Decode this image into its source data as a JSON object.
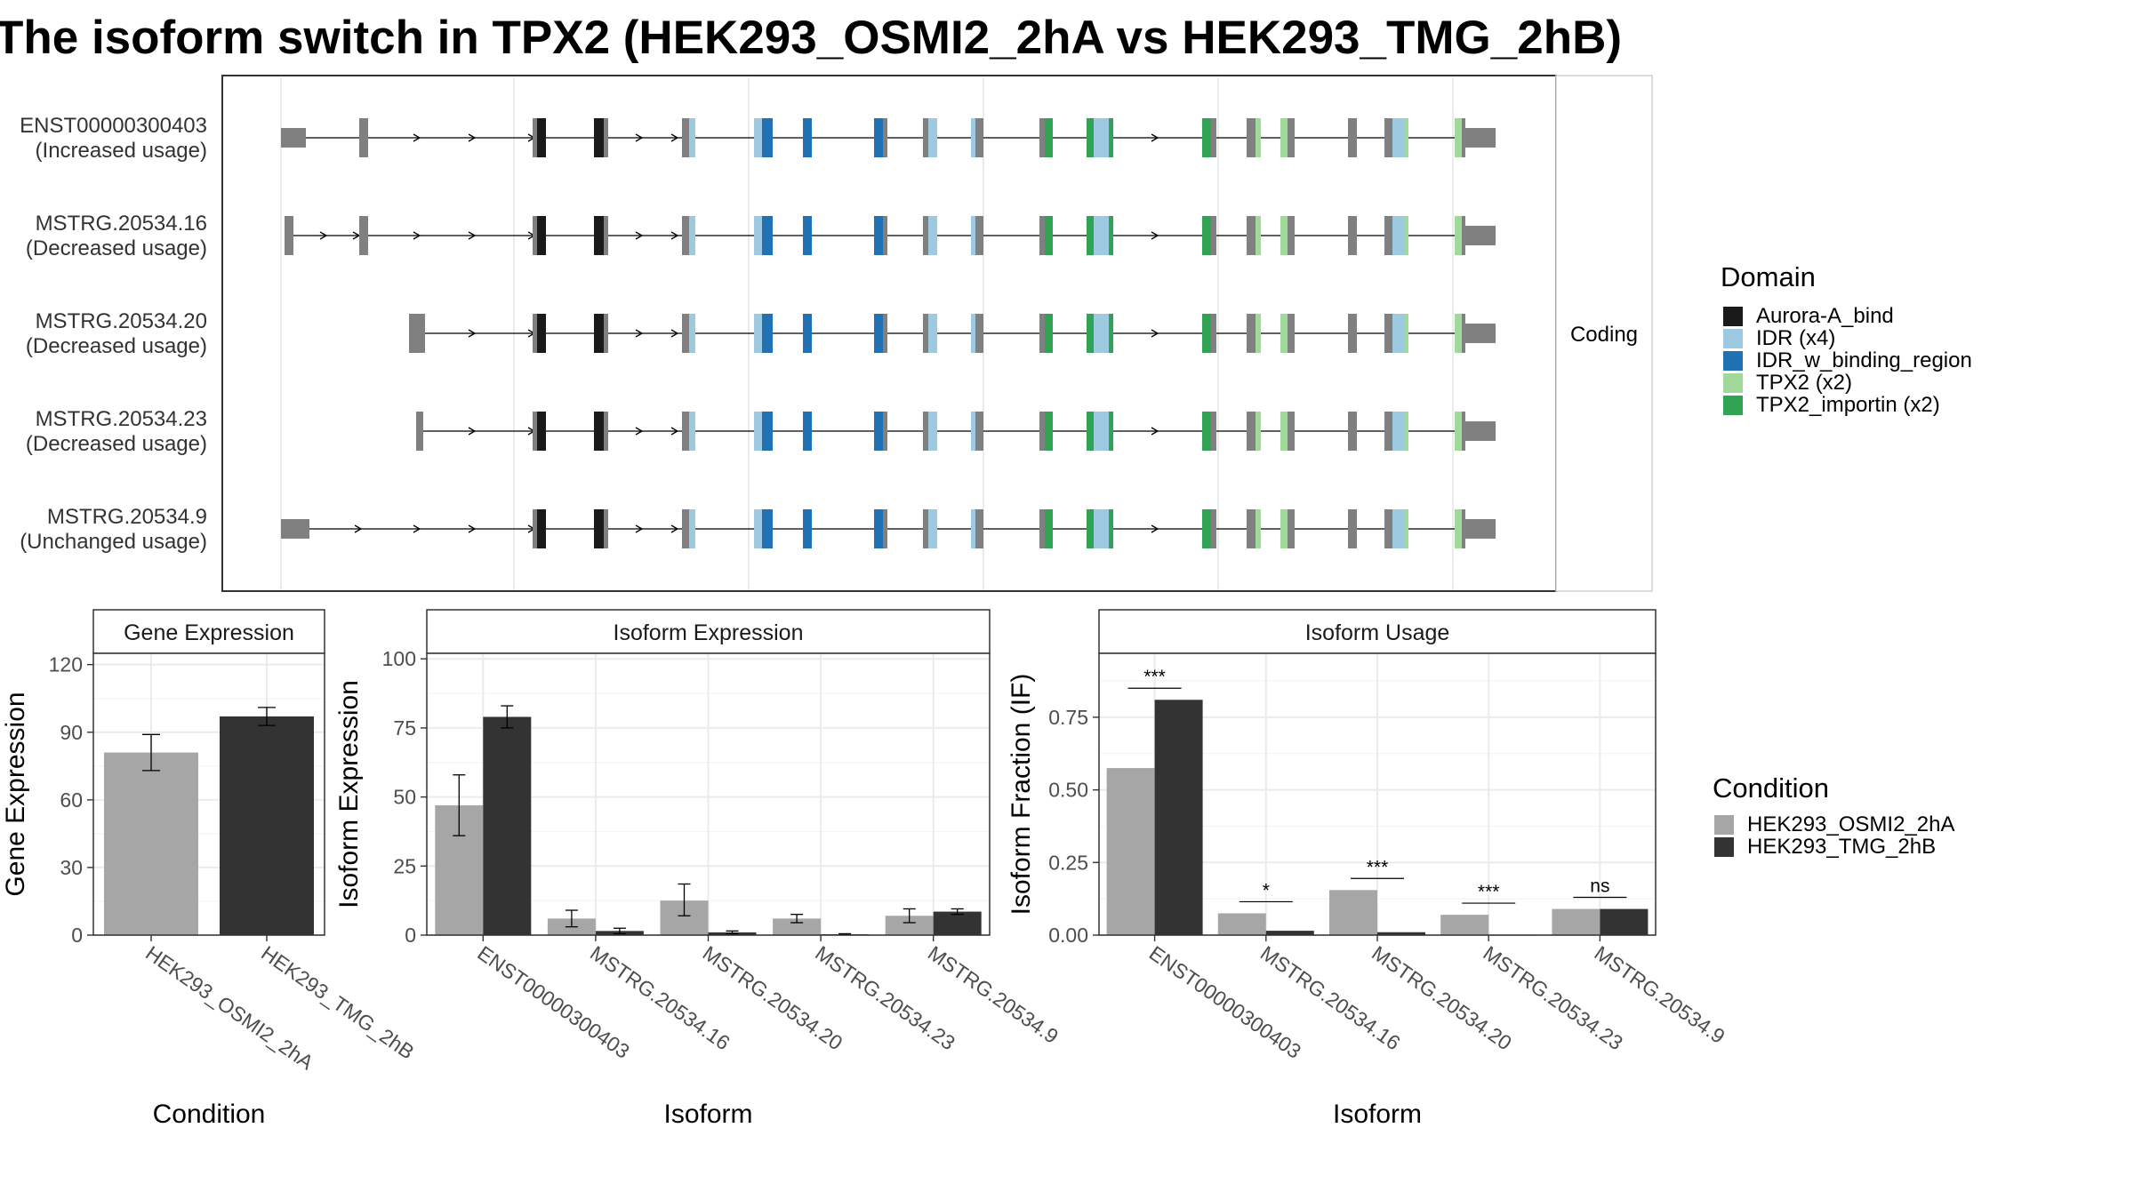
{
  "title": "The isoform switch in TPX2 (HEK293_OSMI2_2hA vs HEK293_TMG_2hB)",
  "colors": {
    "intron_exon": "#808080",
    "Aurora-A_bind": "#1a1a1a",
    "IDR": "#9ecae1",
    "IDR_w_binding_region": "#2171b5",
    "TPX2": "#a1d99b",
    "TPX2_importin": "#31a354",
    "cond_A": "#a6a6a6",
    "cond_B": "#333333",
    "grid": "#ebebeb"
  },
  "structure": {
    "strip_label": "Coding",
    "transcripts": [
      {
        "name": "ENST00000300403",
        "usage": "(Increased usage)",
        "first_exons": [
          [
            316,
            344,
            "utr"
          ],
          [
            404,
            414,
            "cds"
          ]
        ]
      },
      {
        "name": "MSTRG.20534.16",
        "usage": "(Decreased usage)",
        "first_exons": [
          [
            320,
            330,
            "cds"
          ],
          [
            404,
            414,
            "cds"
          ]
        ]
      },
      {
        "name": "MSTRG.20534.20",
        "usage": "(Decreased usage)",
        "first_exons": [
          [
            460,
            478,
            "cds"
          ]
        ]
      },
      {
        "name": "MSTRG.20534.23",
        "usage": "(Decreased usage)",
        "first_exons": [
          [
            468,
            476,
            "cds"
          ]
        ]
      },
      {
        "name": "MSTRG.20534.9",
        "usage": "(Unchanged usage)",
        "first_exons": [
          [
            316,
            348,
            "utr"
          ]
        ]
      }
    ]
  },
  "legend_domain": {
    "title": "Domain",
    "items": [
      {
        "label": "Aurora-A_bind",
        "color_key": "Aurora-A_bind"
      },
      {
        "label": "IDR (x4)",
        "color_key": "IDR"
      },
      {
        "label": "IDR_w_binding_region",
        "color_key": "IDR_w_binding_region"
      },
      {
        "label": "TPX2 (x2)",
        "color_key": "TPX2"
      },
      {
        "label": "TPX2_importin (x2)",
        "color_key": "TPX2_importin"
      }
    ]
  },
  "legend_condition": {
    "title": "Condition",
    "items": [
      "HEK293_OSMI2_2hA",
      "HEK293_TMG_2hB"
    ]
  },
  "chart_data": [
    {
      "type": "bar",
      "title": "Gene Expression",
      "xlabel": "Condition",
      "ylabel": "Gene Expression",
      "ylim": [
        0,
        125
      ],
      "yticks": [
        0,
        30,
        60,
        90,
        120
      ],
      "categories": [
        "HEK293_OSMI2_2hA",
        "HEK293_TMG_2hB"
      ],
      "values": [
        81,
        97
      ],
      "errors": [
        [
          73,
          89
        ],
        [
          93,
          101
        ]
      ],
      "grid": true
    },
    {
      "type": "bar",
      "title": "Isoform Expression",
      "xlabel": "Isoform",
      "ylabel": "Isoform Expression",
      "ylim": [
        0,
        102
      ],
      "yticks": [
        0,
        25,
        50,
        75,
        100
      ],
      "categories": [
        "ENST00000300403",
        "MSTRG.20534.16",
        "MSTRG.20534.20",
        "MSTRG.20534.23",
        "MSTRG.20534.9"
      ],
      "series": [
        {
          "name": "HEK293_OSMI2_2hA",
          "values": [
            47,
            6,
            12.5,
            6,
            7
          ],
          "errors": [
            [
              36,
              58
            ],
            [
              3,
              9
            ],
            [
              7,
              18.5
            ],
            [
              4.5,
              7.5
            ],
            [
              4.5,
              9.5
            ]
          ]
        },
        {
          "name": "HEK293_TMG_2hB",
          "values": [
            79,
            1.5,
            1,
            0.3,
            8.5
          ],
          "errors": [
            [
              75,
              83
            ],
            [
              0.5,
              2.5
            ],
            [
              0.5,
              1.5
            ],
            [
              0.1,
              0.5
            ],
            [
              7.5,
              9.5
            ]
          ]
        }
      ],
      "grid": true
    },
    {
      "type": "bar",
      "title": "Isoform Usage",
      "xlabel": "Isoform",
      "ylabel": "Isoform Fraction (IF)",
      "ylim": [
        0,
        0.97
      ],
      "yticks": [
        "0.00",
        "0.25",
        "0.50",
        "0.75"
      ],
      "categories": [
        "ENST00000300403",
        "MSTRG.20534.16",
        "MSTRG.20534.20",
        "MSTRG.20534.23",
        "MSTRG.20534.9"
      ],
      "series": [
        {
          "name": "HEK293_OSMI2_2hA",
          "values": [
            0.575,
            0.075,
            0.155,
            0.07,
            0.09
          ]
        },
        {
          "name": "HEK293_TMG_2hB",
          "values": [
            0.81,
            0.015,
            0.01,
            0.0,
            0.09
          ]
        }
      ],
      "significance": [
        "***",
        "*",
        "***",
        "***",
        "ns"
      ],
      "sig_heights": [
        0.85,
        0.115,
        0.195,
        0.11,
        0.13
      ],
      "grid": true
    }
  ]
}
